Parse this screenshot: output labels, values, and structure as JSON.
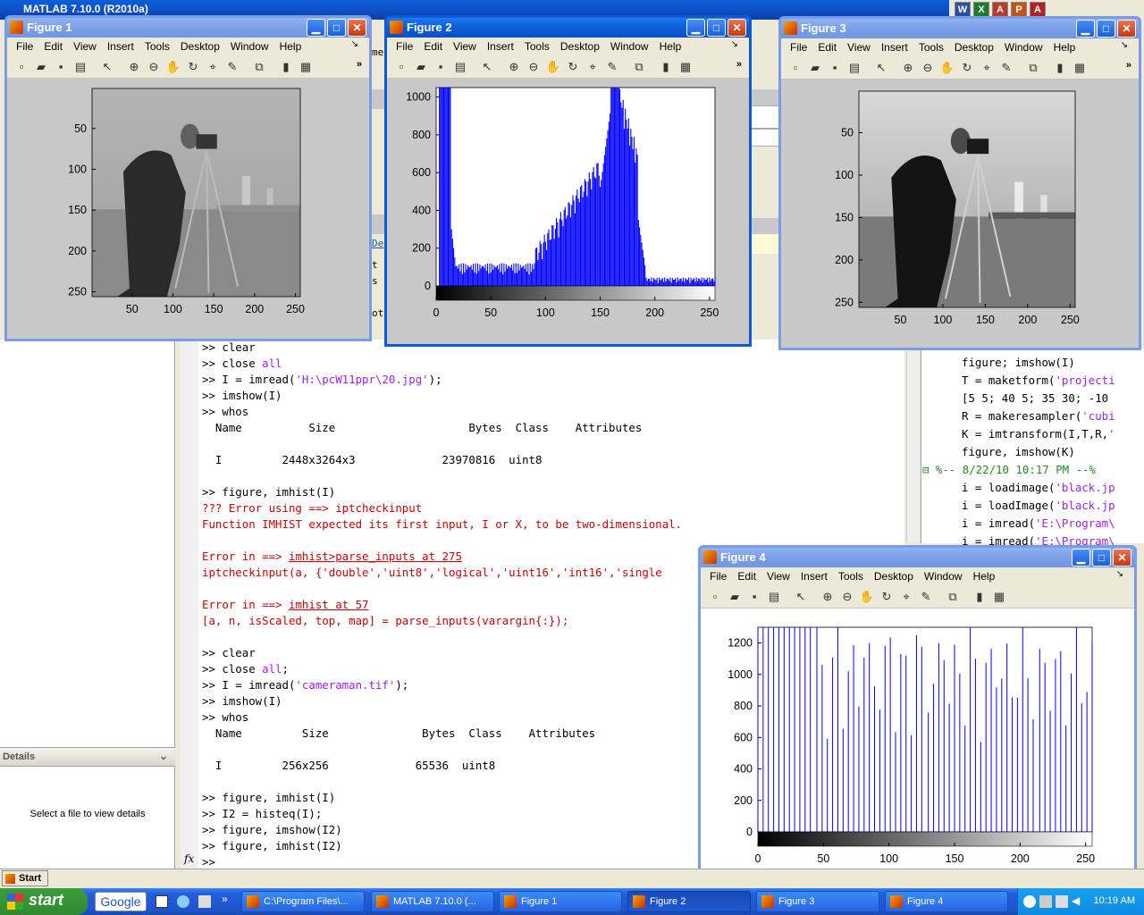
{
  "matlab": {
    "title": "MATLAB  7.10.0 (R2010a)",
    "details_label": "Details",
    "details_text": "Select a file to view details",
    "start_button": "Start",
    "fx": "fx"
  },
  "office_icons": [
    "W",
    "X",
    "A",
    "P",
    "A"
  ],
  "command_window": {
    "lines": [
      {
        "t": ">> clear",
        "c": "n"
      },
      {
        "t": ">> close all",
        "c": "n",
        "str": "all"
      },
      {
        "t": ">> I = imread('H:\\pcW11ppr\\20.jpg');",
        "c": "n",
        "str": "'H:\\pcW11ppr\\20.jpg'"
      },
      {
        "t": ">> imshow(I)",
        "c": "n"
      },
      {
        "t": ">> whos",
        "c": "n"
      },
      {
        "t": "  Name          Size                    Bytes  Class    Attributes",
        "c": "n"
      },
      {
        "t": "",
        "c": "n"
      },
      {
        "t": "  I         2448x3264x3             23970816  uint8",
        "c": "n"
      },
      {
        "t": "",
        "c": "n"
      },
      {
        "t": ">> figure, imhist(I)",
        "c": "n"
      },
      {
        "t": "??? Error using ==> iptcheckinput",
        "c": "e"
      },
      {
        "t": "Function IMHIST expected its first input, I or X, to be two-dimensional.",
        "c": "e"
      },
      {
        "t": "",
        "c": "n"
      },
      {
        "t": "Error in ==> imhist>parse_inputs at 275",
        "c": "e",
        "link": "imhist>parse_inputs at 275"
      },
      {
        "t": "iptcheckinput(a, {'double','uint8','logical','uint16','int16','single",
        "c": "e"
      },
      {
        "t": "",
        "c": "n"
      },
      {
        "t": "Error in ==> imhist at 57",
        "c": "e",
        "link": "imhist at 57"
      },
      {
        "t": "[a, n, isScaled, top, map] = parse_inputs(varargin{:});",
        "c": "e"
      },
      {
        "t": "",
        "c": "n"
      },
      {
        "t": ">> clear",
        "c": "n"
      },
      {
        "t": ">> close all;",
        "c": "n",
        "str": "all"
      },
      {
        "t": ">> I = imread('cameraman.tif');",
        "c": "n",
        "str": "'cameraman.tif'"
      },
      {
        "t": ">> imshow(I)",
        "c": "n"
      },
      {
        "t": ">> whos",
        "c": "n"
      },
      {
        "t": "  Name         Size              Bytes  Class    Attributes",
        "c": "n"
      },
      {
        "t": "",
        "c": "n"
      },
      {
        "t": "  I         256x256             65536  uint8",
        "c": "n"
      },
      {
        "t": "",
        "c": "n"
      },
      {
        "t": ">> figure, imhist(I)",
        "c": "n"
      },
      {
        "t": ">> I2 = histeq(I);",
        "c": "n"
      },
      {
        "t": ">> figure, imshow(I2)",
        "c": "n"
      },
      {
        "t": ">> figure, imhist(I2)",
        "c": "n"
      },
      {
        "t": ">> ",
        "c": "n"
      }
    ]
  },
  "command_history": {
    "lines": [
      {
        "t": "figure; imshow(I)",
        "str": ""
      },
      {
        "t": "T = maketform('projecti",
        "str": "'projecti"
      },
      {
        "t": "[5 5; 40 5; 35 30; -10",
        "str": ""
      },
      {
        "t": "R = makeresampler('cubi",
        "str": "'cubi"
      },
      {
        "t": "K = imtransform(I,T,R,'",
        "str": "'"
      },
      {
        "t": "figure, imshow(K)",
        "str": ""
      },
      {
        "t": "%-- 8/22/10 10:17 PM --%",
        "str": "",
        "comment": true
      },
      {
        "t": "i = loadimage('black.jp",
        "str": "'black.jp"
      },
      {
        "t": "i = loadImage('black.jp",
        "str": "'black.jp"
      },
      {
        "t": "i = imread('E:\\Program\\",
        "str": "'E:\\Program\\"
      },
      {
        "t": "i = imread('E:\\Program\\",
        "str": "'E:\\Program\\"
      }
    ]
  },
  "peek_text": [
    "me",
    "De",
    "t",
    "s",
    "ot"
  ],
  "menu": [
    "File",
    "Edit",
    "View",
    "Insert",
    "Tools",
    "Desktop",
    "Window",
    "Help"
  ],
  "toolbar_icons": [
    "new-file-icon",
    "open-folder-icon",
    "save-icon",
    "print-icon",
    "pointer-icon",
    "zoom-in-icon",
    "zoom-out-icon",
    "pan-hand-icon",
    "rotate-3d-icon",
    "data-cursor-icon",
    "brush-icon",
    "link-icon",
    "colorbar-icon",
    "legend-icon"
  ],
  "figures": [
    {
      "title": "Figure 1",
      "xticks": [
        "50",
        "100",
        "150",
        "200",
        "250"
      ],
      "yticks": [
        "50",
        "100",
        "150",
        "200",
        "250"
      ]
    },
    {
      "title": "Figure 2",
      "xticks": [
        "0",
        "50",
        "100",
        "150",
        "200",
        "250"
      ],
      "yticks": [
        "0",
        "200",
        "400",
        "600",
        "800",
        "1000"
      ]
    },
    {
      "title": "Figure 3",
      "xticks": [
        "50",
        "100",
        "150",
        "200",
        "250"
      ],
      "yticks": [
        "50",
        "100",
        "150",
        "200",
        "250"
      ]
    },
    {
      "title": "Figure 4",
      "xticks": [
        "0",
        "50",
        "100",
        "150",
        "200",
        "250"
      ],
      "yticks": [
        "0",
        "200",
        "400",
        "600",
        "800",
        "1000",
        "1200"
      ]
    }
  ],
  "chart_data": [
    {
      "type": "bar",
      "title": "",
      "xlabel": "",
      "ylabel": "",
      "xlim": [
        0,
        255
      ],
      "ylim": [
        0,
        1050
      ],
      "description": "imhist(I) of cameraman.tif (256 bins, blue bars, grayscale colorbar beneath axis)",
      "values_approx": {
        "bins_0_15": [
          1020,
          1050,
          1050,
          1050,
          1050,
          1050,
          1050,
          1050,
          1050,
          1050,
          1050,
          1020,
          900,
          700,
          450,
          300
        ],
        "bins_16_60": "~50-120 (flat noisy)",
        "bins_60_100": "~50-150 rising",
        "bins_100_160": "rising from ~150 to ~600",
        "bins_160_175": [
          700,
          900,
          1050,
          1050,
          1000,
          950,
          800
        ],
        "bins_175_190": "~600-800 falling",
        "bins_190_255": "~10-50"
      }
    },
    {
      "type": "bar",
      "title": "",
      "xlabel": "",
      "ylabel": "",
      "xlim": [
        0,
        255
      ],
      "ylim": [
        0,
        1300
      ],
      "description": "imhist(I2) after histeq: sparse bars spread across 0-255, heights ~500-1300"
    }
  ],
  "taskbar": {
    "start": "start",
    "search": "Google",
    "buttons": [
      {
        "label": "C:\\Program Files\\...",
        "active": false
      },
      {
        "label": "MATLAB  7.10.0 (...",
        "active": false
      },
      {
        "label": "Figure 1",
        "active": false
      },
      {
        "label": "Figure 2",
        "active": true
      },
      {
        "label": "Figure 3",
        "active": false
      },
      {
        "label": "Figure 4",
        "active": false
      }
    ],
    "clock": "10:19 AM"
  }
}
